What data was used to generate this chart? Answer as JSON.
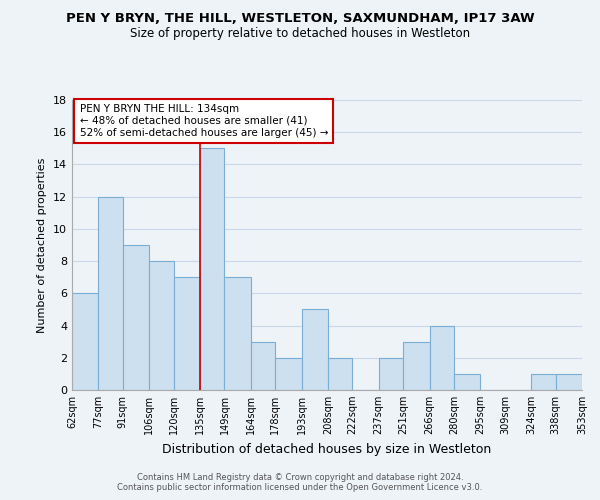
{
  "title": "PEN Y BRYN, THE HILL, WESTLETON, SAXMUNDHAM, IP17 3AW",
  "subtitle": "Size of property relative to detached houses in Westleton",
  "xlabel": "Distribution of detached houses by size in Westleton",
  "ylabel": "Number of detached properties",
  "bar_color": "#cce0f0",
  "bar_edge_color": "#7aaed4",
  "highlight_line_color": "#cc0000",
  "bins": [
    62,
    77,
    91,
    106,
    120,
    135,
    149,
    164,
    178,
    193,
    208,
    222,
    237,
    251,
    266,
    280,
    295,
    309,
    324,
    338,
    353
  ],
  "bin_labels": [
    "62sqm",
    "77sqm",
    "91sqm",
    "106sqm",
    "120sqm",
    "135sqm",
    "149sqm",
    "164sqm",
    "178sqm",
    "193sqm",
    "208sqm",
    "222sqm",
    "237sqm",
    "251sqm",
    "266sqm",
    "280sqm",
    "295sqm",
    "309sqm",
    "324sqm",
    "338sqm",
    "353sqm"
  ],
  "counts": [
    6,
    12,
    9,
    8,
    7,
    15,
    7,
    3,
    2,
    5,
    2,
    0,
    2,
    3,
    4,
    1,
    0,
    0,
    1,
    1
  ],
  "ylim": [
    0,
    18
  ],
  "yticks": [
    0,
    2,
    4,
    6,
    8,
    10,
    12,
    14,
    16,
    18
  ],
  "annotation_title": "PEN Y BRYN THE HILL: 134sqm",
  "annotation_line1": "← 48% of detached houses are smaller (41)",
  "annotation_line2": "52% of semi-detached houses are larger (45) →",
  "annotation_box_color": "#ffffff",
  "annotation_box_edge_color": "#cc0000",
  "grid_color": "#c8d8e8",
  "background_color": "#eef3f8",
  "footer_line1": "Contains HM Land Registry data © Crown copyright and database right 2024.",
  "footer_line2": "Contains public sector information licensed under the Open Government Licence v3.0."
}
